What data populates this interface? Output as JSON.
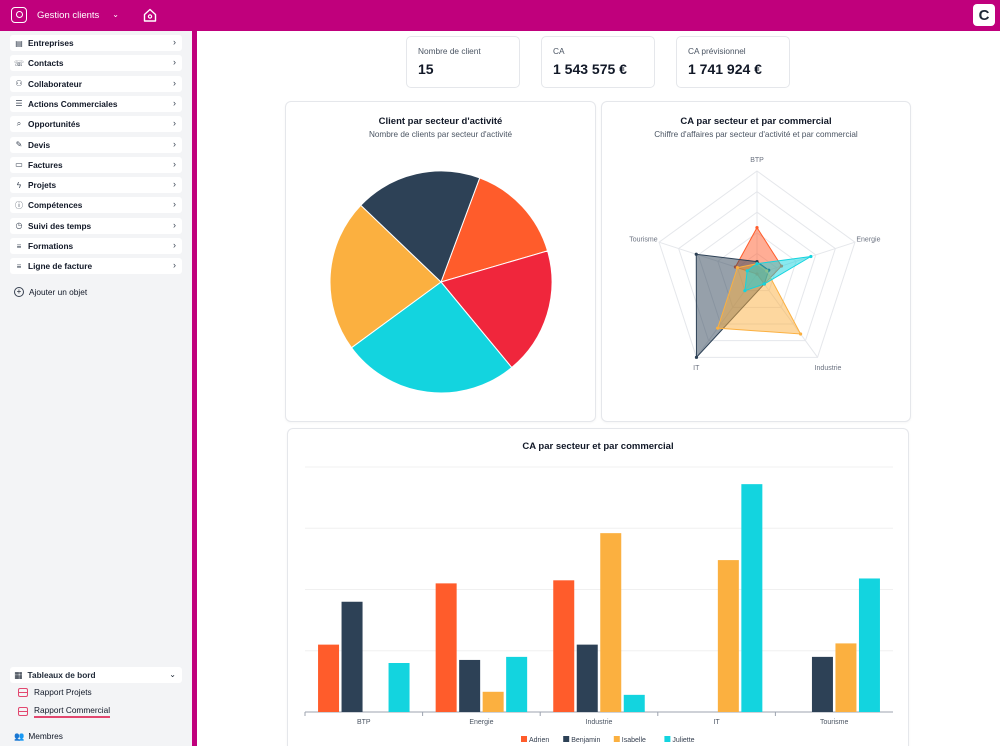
{
  "topbar": {
    "app_name": "Gestion clients",
    "logo_letter": "C"
  },
  "sidebar": {
    "items": [
      {
        "label": "Entreprises",
        "icon": "building-icon"
      },
      {
        "label": "Contacts",
        "icon": "phone-icon"
      },
      {
        "label": "Collaborateur",
        "icon": "users-icon"
      },
      {
        "label": "Actions Commerciales",
        "icon": "list-icon"
      },
      {
        "label": "Opportunités",
        "icon": "search-icon"
      },
      {
        "label": "Devis",
        "icon": "edit-icon"
      },
      {
        "label": "Factures",
        "icon": "receipt-icon"
      },
      {
        "label": "Projets",
        "icon": "bolt-icon"
      },
      {
        "label": "Compétences",
        "icon": "info-icon"
      },
      {
        "label": "Suivi des temps",
        "icon": "clock-icon"
      },
      {
        "label": "Formations",
        "icon": "database-icon"
      },
      {
        "label": "Ligne de facture",
        "icon": "database-icon"
      }
    ],
    "add_object": "Ajouter un objet",
    "dashboards": {
      "label": "Tableaux de bord",
      "items": [
        "Rapport Projets",
        "Rapport Commercial"
      ],
      "active": "Rapport Commercial"
    },
    "members": "Membres"
  },
  "kpis": [
    {
      "label": "Nombre de client",
      "value": "15"
    },
    {
      "label": "CA",
      "value": "1 543 575 €"
    },
    {
      "label": "CA prévisionnel",
      "value": "1 741 924 €"
    }
  ],
  "colors": {
    "brand": "#c0007c",
    "Adrien": "#ff5c2b",
    "Benjamin": "#2d4156",
    "Isabelle": "#fbb040",
    "Juliette": "#13d4df",
    "red": "#f0263c"
  },
  "chart_data": [
    {
      "type": "pie",
      "title": "Client par secteur d'activité",
      "subtitle": "Nombre de clients par secteur d'activité",
      "slices": [
        {
          "value": 2,
          "color": "#ff5c2b"
        },
        {
          "value": 2.5,
          "color": "#f0263c"
        },
        {
          "value": 3.5,
          "color": "#13d4df"
        },
        {
          "value": 3,
          "color": "#fbb040"
        },
        {
          "value": 2.5,
          "color": "#2d4156"
        }
      ]
    },
    {
      "type": "radar",
      "title": "CA par secteur et par commercial",
      "subtitle": "Chiffre d'affaires par secteur d'activité et par commercial",
      "axes": [
        "BTP",
        "Energie",
        "Industrie",
        "IT",
        "Tourisme"
      ],
      "max": 100,
      "series": [
        {
          "name": "Adrien",
          "color": "#ff5c2b",
          "values": [
            45,
            25,
            12,
            0,
            22
          ]
        },
        {
          "name": "Benjamin",
          "color": "#2d4156",
          "values": [
            12,
            12,
            12,
            100,
            62
          ]
        },
        {
          "name": "Isabelle",
          "color": "#fbb040",
          "values": [
            10,
            10,
            72,
            65,
            20
          ]
        },
        {
          "name": "Juliette",
          "color": "#13d4df",
          "values": [
            10,
            55,
            12,
            20,
            10
          ]
        }
      ]
    },
    {
      "type": "bar",
      "title": "CA par secteur et par commercial",
      "categories": [
        "BTP",
        "Energie",
        "Industrie",
        "IT",
        "Tourisme"
      ],
      "ylim": [
        0,
        400000
      ],
      "series": [
        {
          "name": "Adrien",
          "color": "#ff5c2b",
          "values": [
            110000,
            210000,
            215000,
            0,
            0
          ]
        },
        {
          "name": "Benjamin",
          "color": "#2d4156",
          "values": [
            180000,
            85000,
            110000,
            0,
            90000
          ]
        },
        {
          "name": "Isabelle",
          "color": "#fbb040",
          "values": [
            0,
            33000,
            292000,
            248000,
            112000
          ]
        },
        {
          "name": "Juliette",
          "color": "#13d4df",
          "values": [
            80000,
            90000,
            28000,
            372000,
            218000
          ]
        }
      ],
      "legend": "bottom"
    }
  ]
}
